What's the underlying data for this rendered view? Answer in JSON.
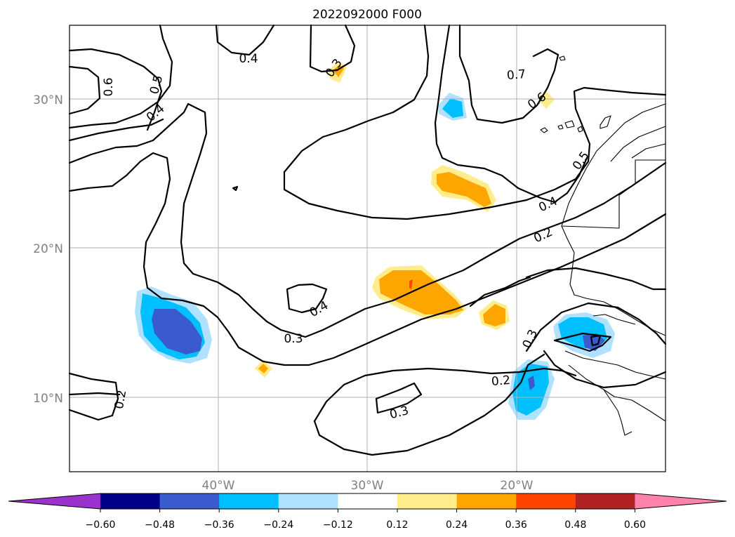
{
  "title": "2022092000 F000",
  "map": {
    "lat_labels": [
      "30°N",
      "20°N",
      "10°N"
    ],
    "lon_labels": [
      "40°W",
      "30°W",
      "20°W"
    ],
    "contour_labels": [
      "0.4",
      "0.3",
      "0.6",
      "0.5",
      "0.4",
      "0.7",
      "0.6",
      "0.5",
      "0.4",
      "0.2",
      "0.4",
      "0.3",
      "0.3",
      "0.2",
      "0.2",
      "0.3"
    ]
  },
  "colorbar": {
    "ticks": [
      "−0.60",
      "−0.48",
      "−0.36",
      "−0.24",
      "−0.12",
      "0.12",
      "0.24",
      "0.36",
      "0.48",
      "0.60"
    ],
    "colors": [
      "#9a32cd",
      "#00008b",
      "#3a5bcd",
      "#00bfff",
      "#b0e2ff",
      "#ffffff",
      "#ffec8b",
      "#ffa500",
      "#ff4500",
      "#b22222",
      "#ff82ab"
    ]
  }
}
